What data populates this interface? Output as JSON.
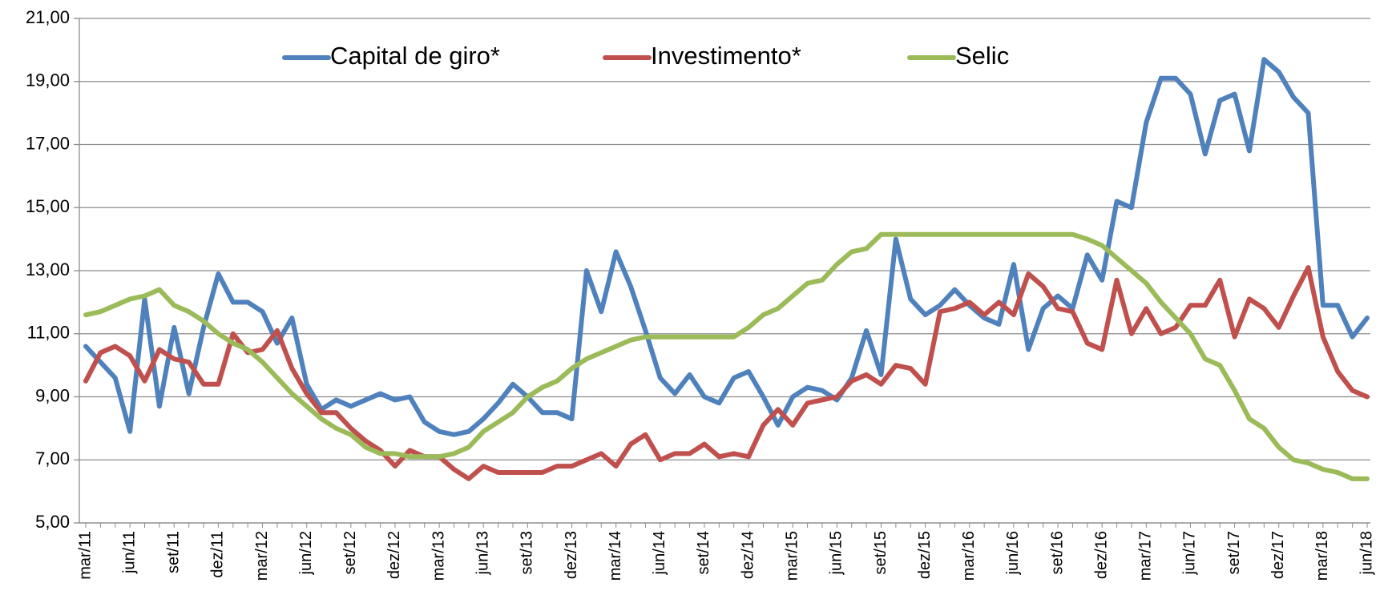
{
  "chart_data": {
    "type": "line",
    "categories": [
      "mar/11",
      null,
      null,
      "jun/11",
      null,
      null,
      "set/11",
      null,
      null,
      "dez/11",
      null,
      null,
      "mar/12",
      null,
      null,
      "jun/12",
      null,
      null,
      "set/12",
      null,
      null,
      "dez/12",
      null,
      null,
      "mar/13",
      null,
      null,
      "jun/13",
      null,
      null,
      "set/13",
      null,
      null,
      "dez/13",
      null,
      null,
      "mar/14",
      null,
      null,
      "jun/14",
      null,
      null,
      "set/14",
      null,
      null,
      "dez/14",
      null,
      null,
      "mar/15",
      null,
      null,
      "jun/15",
      null,
      null,
      "set/15",
      null,
      null,
      "dez/15",
      null,
      null,
      "mar/16",
      null,
      null,
      "jun/16",
      null,
      null,
      "set/16",
      null,
      null,
      "dez/16",
      null,
      null,
      "mar/17",
      null,
      null,
      "jun/17",
      null,
      null,
      "set/17",
      null,
      null,
      "dez/17",
      null,
      null,
      "mar/18",
      null,
      null,
      "jun/18"
    ],
    "series": [
      {
        "name": "Capital de giro*",
        "color": "#4f81bd",
        "values": [
          10.6,
          10.1,
          9.6,
          7.9,
          12.1,
          8.7,
          11.2,
          9.1,
          11.2,
          12.9,
          12.0,
          12.0,
          11.7,
          10.7,
          11.5,
          9.4,
          8.6,
          8.9,
          8.7,
          8.9,
          9.1,
          8.9,
          9.0,
          8.2,
          7.9,
          7.8,
          7.9,
          8.3,
          8.8,
          9.4,
          9.0,
          8.5,
          8.5,
          8.3,
          13.0,
          11.7,
          13.6,
          12.5,
          11.1,
          9.6,
          9.1,
          9.7,
          9.0,
          8.8,
          9.6,
          9.8,
          9.0,
          8.1,
          9.0,
          9.3,
          9.2,
          8.9,
          9.6,
          11.1,
          9.7,
          14.0,
          12.1,
          11.6,
          11.9,
          12.4,
          11.9,
          11.5,
          11.3,
          13.2,
          10.5,
          11.8,
          12.2,
          11.8,
          13.5,
          12.7,
          15.2,
          15.0,
          17.7,
          19.1,
          19.1,
          18.6,
          16.7,
          18.4,
          18.6,
          16.8,
          19.7,
          19.3,
          18.5,
          18.0,
          11.9,
          11.9,
          10.9,
          11.5
        ]
      },
      {
        "name": "Investimento*",
        "color": "#c0504d",
        "values": [
          9.5,
          10.4,
          10.6,
          10.3,
          9.5,
          10.5,
          10.2,
          10.1,
          9.4,
          9.4,
          11.0,
          10.4,
          10.5,
          11.1,
          9.9,
          9.1,
          8.5,
          8.5,
          8.0,
          7.6,
          7.3,
          6.8,
          7.3,
          7.1,
          7.1,
          6.7,
          6.4,
          6.8,
          6.6,
          6.6,
          6.6,
          6.6,
          6.8,
          6.8,
          7.0,
          7.2,
          6.8,
          7.5,
          7.8,
          7.0,
          7.2,
          7.2,
          7.5,
          7.1,
          7.2,
          7.1,
          8.1,
          8.6,
          8.1,
          8.8,
          8.9,
          9.0,
          9.5,
          9.7,
          9.4,
          10.0,
          9.9,
          9.4,
          11.7,
          11.8,
          12.0,
          11.6,
          12.0,
          11.6,
          12.9,
          12.5,
          11.8,
          11.7,
          10.7,
          10.5,
          12.7,
          11.0,
          11.8,
          11.0,
          11.2,
          11.9,
          11.9,
          12.7,
          10.9,
          12.1,
          11.8,
          11.2,
          12.2,
          13.1,
          10.9,
          9.8,
          9.2,
          9.0
        ]
      },
      {
        "name": "Selic",
        "color": "#9bbb59",
        "values": [
          11.6,
          11.7,
          11.9,
          12.1,
          12.2,
          12.4,
          11.9,
          11.7,
          11.4,
          11.0,
          10.7,
          10.5,
          10.1,
          9.6,
          9.1,
          8.7,
          8.3,
          8.0,
          7.8,
          7.4,
          7.2,
          7.2,
          7.1,
          7.1,
          7.1,
          7.2,
          7.4,
          7.9,
          8.2,
          8.5,
          9.0,
          9.3,
          9.5,
          9.9,
          10.2,
          10.4,
          10.6,
          10.8,
          10.9,
          10.9,
          10.9,
          10.9,
          10.9,
          10.9,
          10.9,
          11.2,
          11.6,
          11.8,
          12.2,
          12.6,
          12.7,
          13.2,
          13.6,
          13.7,
          14.15,
          14.15,
          14.15,
          14.15,
          14.15,
          14.15,
          14.15,
          14.15,
          14.15,
          14.15,
          14.15,
          14.15,
          14.15,
          14.15,
          14.0,
          13.8,
          13.4,
          13.0,
          12.6,
          12.0,
          11.5,
          11.0,
          10.2,
          10.0,
          9.2,
          8.3,
          8.0,
          7.4,
          7.0,
          6.9,
          6.7,
          6.6,
          6.4,
          6.4
        ]
      }
    ],
    "ylim": [
      5,
      21
    ],
    "yticks": [
      {
        "value": 5,
        "label": "5,00"
      },
      {
        "value": 7,
        "label": "7,00"
      },
      {
        "value": 9,
        "label": "9,00"
      },
      {
        "value": 11,
        "label": "11,00"
      },
      {
        "value": 13,
        "label": "13,00"
      },
      {
        "value": 15,
        "label": "15,00"
      },
      {
        "value": 17,
        "label": "17,00"
      },
      {
        "value": 19,
        "label": "19,00"
      },
      {
        "value": 21,
        "label": "21,00"
      }
    ],
    "grid": true,
    "legend": "top"
  }
}
